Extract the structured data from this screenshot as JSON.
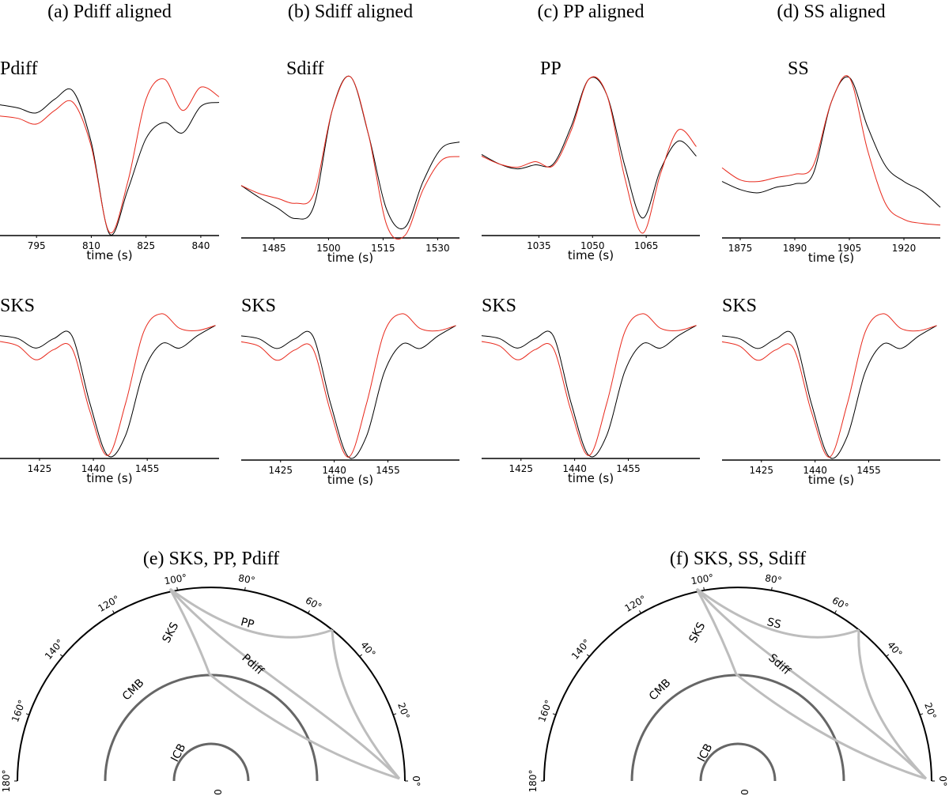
{
  "chart_data": [
    {
      "type": "line",
      "title": "(a) Pdiff aligned",
      "annotation": "Pdiff",
      "xlabel": "time (s)",
      "x": [
        785,
        790,
        795,
        800,
        805,
        810,
        815,
        820,
        825,
        830,
        835,
        840,
        845
      ],
      "series": [
        {
          "color": "#000000",
          "values": [
            0.63,
            0.59,
            0.53,
            0.7,
            0.8,
            0.16,
            -0.98,
            -0.43,
            0.21,
            0.41,
            0.28,
            0.61,
            0.66
          ]
        },
        {
          "color": "#e8291c",
          "values": [
            0.49,
            0.46,
            0.39,
            0.56,
            0.66,
            0.11,
            -0.96,
            -0.33,
            0.7,
            0.95,
            0.56,
            0.85,
            0.73
          ]
        }
      ],
      "xlim": [
        785,
        845
      ],
      "ylim": [
        -1,
        1
      ],
      "xticks": [
        795,
        810,
        825,
        840
      ]
    },
    {
      "type": "line",
      "title": "(b) Sdiff aligned",
      "annotation": "Sdiff",
      "xlabel": "time (s)",
      "x": [
        1476,
        1481,
        1486,
        1491,
        1496,
        1501,
        1506,
        1511,
        1516,
        1521,
        1526,
        1531,
        1536
      ],
      "series": [
        {
          "color": "#000000",
          "values": [
            -0.35,
            -0.5,
            -0.63,
            -0.76,
            -0.6,
            0.58,
            1.0,
            0.28,
            -0.65,
            -0.87,
            -0.3,
            0.11,
            0.19
          ]
        },
        {
          "color": "#e8291c",
          "values": [
            -0.35,
            -0.45,
            -0.51,
            -0.57,
            -0.45,
            0.58,
            1.0,
            0.28,
            -0.84,
            -0.97,
            -0.4,
            -0.04,
            0.01
          ]
        }
      ],
      "xlim": [
        1476,
        1536
      ],
      "ylim": [
        -1,
        1
      ],
      "xticks": [
        1485,
        1500,
        1515,
        1530
      ]
    },
    {
      "type": "line",
      "title": "(c) PP aligned",
      "annotation": "PP",
      "xlabel": "time (s)",
      "x": [
        1019,
        1024,
        1029,
        1034,
        1039,
        1044,
        1049,
        1054,
        1059,
        1064,
        1069,
        1074,
        1079
      ],
      "series": [
        {
          "color": "#000000",
          "values": [
            0.02,
            -0.1,
            -0.16,
            -0.11,
            -0.1,
            0.37,
            0.97,
            0.77,
            -0.12,
            -0.78,
            -0.17,
            0.19,
            0.0
          ]
        },
        {
          "color": "#e8291c",
          "values": [
            0.0,
            -0.1,
            -0.14,
            -0.07,
            -0.12,
            0.32,
            0.97,
            0.77,
            -0.27,
            -0.97,
            -0.22,
            0.33,
            0.12
          ]
        }
      ],
      "xlim": [
        1019,
        1080
      ],
      "ylim": [
        -1,
        1
      ],
      "xticks": [
        1035,
        1050,
        1065
      ]
    },
    {
      "type": "line",
      "title": "(d) SS aligned",
      "annotation": "SS",
      "xlabel": "time (s)",
      "x": [
        1870,
        1875,
        1880,
        1885,
        1890,
        1895,
        1900,
        1905,
        1910,
        1915,
        1920,
        1925,
        1930
      ],
      "series": [
        {
          "color": "#000000",
          "values": [
            -0.3,
            -0.4,
            -0.44,
            -0.37,
            -0.33,
            -0.21,
            0.68,
            0.99,
            0.38,
            -0.11,
            -0.3,
            -0.42,
            -0.62
          ]
        },
        {
          "color": "#e8291c",
          "values": [
            -0.13,
            -0.28,
            -0.3,
            -0.25,
            -0.21,
            -0.11,
            0.68,
            0.99,
            0.09,
            -0.58,
            -0.77,
            -0.82,
            -0.84
          ]
        }
      ],
      "xlim": [
        1870,
        1930
      ],
      "ylim": [
        -1,
        1
      ],
      "xticks": [
        1875,
        1890,
        1905,
        1920
      ]
    },
    {
      "type": "line",
      "annotation": "SKS",
      "xlabel": "time (s)",
      "x": [
        1414,
        1419,
        1424,
        1429,
        1434,
        1439,
        1444,
        1449,
        1454,
        1459,
        1464,
        1469,
        1474
      ],
      "series": [
        {
          "color": "#000000",
          "values": [
            0.68,
            0.64,
            0.51,
            0.64,
            0.68,
            -0.24,
            -0.96,
            -0.68,
            0.19,
            0.57,
            0.51,
            0.68,
            0.82
          ]
        },
        {
          "color": "#e8291c",
          "values": [
            0.6,
            0.54,
            0.35,
            0.49,
            0.51,
            -0.35,
            -0.96,
            -0.24,
            0.73,
            0.98,
            0.78,
            0.75,
            0.82
          ]
        }
      ],
      "xlim": [
        1414,
        1475
      ],
      "ylim": [
        -1,
        1
      ],
      "xticks": [
        1425,
        1440,
        1455
      ]
    },
    {
      "type": "line",
      "annotation": "SKS",
      "xlabel": "time (s)",
      "x": [
        1414,
        1419,
        1424,
        1429,
        1434,
        1439,
        1444,
        1449,
        1454,
        1459,
        1464,
        1469,
        1474
      ],
      "series": [
        {
          "color": "#000000",
          "values": [
            0.68,
            0.64,
            0.51,
            0.64,
            0.68,
            -0.24,
            -0.96,
            -0.68,
            0.19,
            0.57,
            0.51,
            0.68,
            0.82
          ]
        },
        {
          "color": "#e8291c",
          "values": [
            0.6,
            0.54,
            0.35,
            0.49,
            0.51,
            -0.35,
            -0.96,
            -0.24,
            0.73,
            0.98,
            0.78,
            0.75,
            0.82
          ]
        }
      ],
      "xlim": [
        1414,
        1475
      ],
      "ylim": [
        -1,
        1
      ],
      "xticks": [
        1425,
        1440,
        1455
      ]
    },
    {
      "type": "line",
      "annotation": "SKS",
      "xlabel": "time (s)",
      "x": [
        1414,
        1419,
        1424,
        1429,
        1434,
        1439,
        1444,
        1449,
        1454,
        1459,
        1464,
        1469,
        1474
      ],
      "series": [
        {
          "color": "#000000",
          "values": [
            0.68,
            0.64,
            0.51,
            0.64,
            0.68,
            -0.24,
            -0.96,
            -0.68,
            0.19,
            0.57,
            0.51,
            0.68,
            0.82
          ]
        },
        {
          "color": "#e8291c",
          "values": [
            0.6,
            0.54,
            0.35,
            0.49,
            0.51,
            -0.35,
            -0.96,
            -0.24,
            0.73,
            0.98,
            0.78,
            0.75,
            0.82
          ]
        }
      ],
      "xlim": [
        1414,
        1475
      ],
      "ylim": [
        -1,
        1
      ],
      "xticks": [
        1425,
        1440,
        1455
      ]
    },
    {
      "type": "line",
      "annotation": "SKS",
      "xlabel": "time (s)",
      "x": [
        1414,
        1419,
        1424,
        1429,
        1434,
        1439,
        1444,
        1449,
        1454,
        1459,
        1464,
        1469,
        1474
      ],
      "series": [
        {
          "color": "#000000",
          "values": [
            0.68,
            0.64,
            0.51,
            0.64,
            0.68,
            -0.24,
            -0.96,
            -0.68,
            0.19,
            0.57,
            0.51,
            0.68,
            0.82
          ]
        },
        {
          "color": "#e8291c",
          "values": [
            0.6,
            0.54,
            0.35,
            0.49,
            0.51,
            -0.35,
            -0.96,
            -0.24,
            0.73,
            0.98,
            0.78,
            0.75,
            0.82
          ]
        }
      ],
      "xlim": [
        1414,
        1475
      ],
      "ylim": [
        -1,
        1
      ],
      "xticks": [
        1425,
        1440,
        1455
      ]
    }
  ],
  "ray_diagrams": [
    {
      "title": "(e) SKS, PP, Pdiff",
      "center_label": "0",
      "angle_ticks": [
        {
          "value": 0,
          "label": "0°"
        },
        {
          "value": 20,
          "label": "20°"
        },
        {
          "value": 40,
          "label": "40°"
        },
        {
          "value": 60,
          "label": "60°"
        },
        {
          "value": 80,
          "label": "80°"
        },
        {
          "value": 100,
          "label": "100°"
        },
        {
          "value": 120,
          "label": "120°"
        },
        {
          "value": 140,
          "label": "140°"
        },
        {
          "value": 160,
          "label": "160°"
        },
        {
          "value": 180,
          "label": "180°"
        }
      ],
      "labels": [
        "SKS",
        "PP",
        "Pdiff",
        "CMB",
        "ICB"
      ]
    },
    {
      "title": "(f) SKS, SS, Sdiff",
      "center_label": "0",
      "angle_ticks": [
        {
          "value": 0,
          "label": "0°"
        },
        {
          "value": 20,
          "label": "20°"
        },
        {
          "value": 40,
          "label": "40°"
        },
        {
          "value": 60,
          "label": "60°"
        },
        {
          "value": 80,
          "label": "80°"
        },
        {
          "value": 100,
          "label": "100°"
        },
        {
          "value": 120,
          "label": "120°"
        },
        {
          "value": 140,
          "label": "140°"
        },
        {
          "value": 160,
          "label": "160°"
        },
        {
          "value": 180,
          "label": "180°"
        }
      ],
      "labels": [
        "SKS",
        "SS",
        "Sdiff",
        "CMB",
        "ICB"
      ]
    }
  ]
}
